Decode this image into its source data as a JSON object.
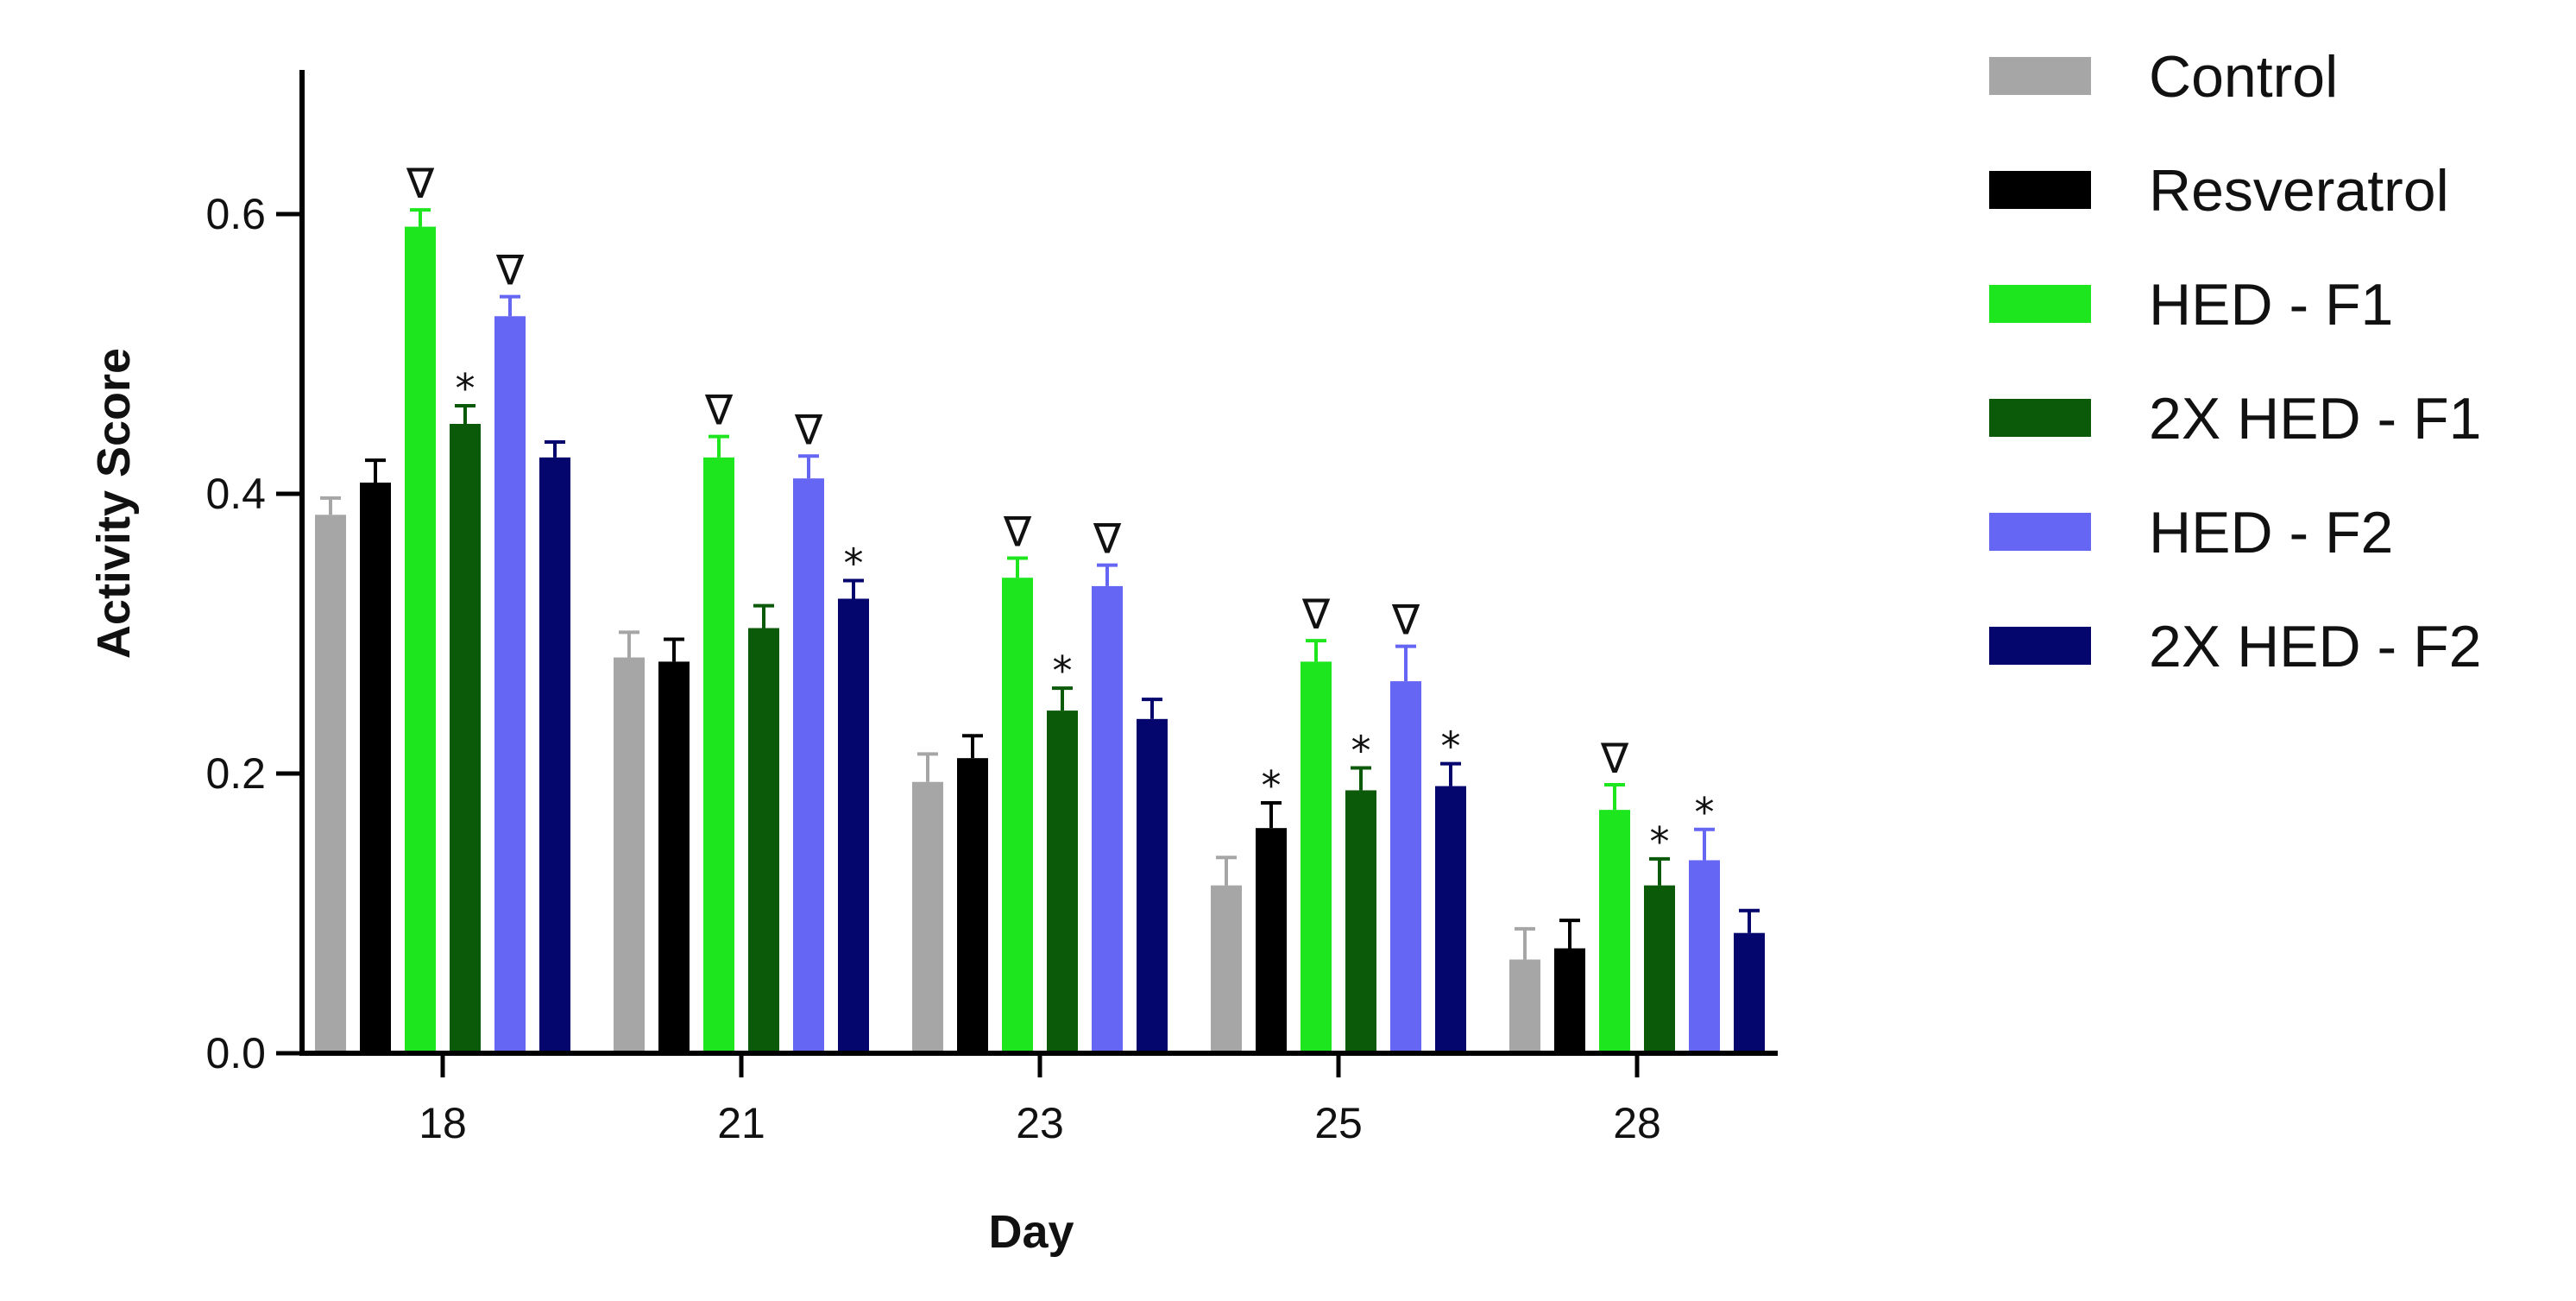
{
  "chart_data": {
    "type": "bar",
    "xlabel": "Day",
    "ylabel": "Activity Score",
    "ylim": [
      0,
      0.7
    ],
    "yticks": [
      0.0,
      0.2,
      0.4,
      0.6
    ],
    "ytick_labels": [
      "0.0",
      "0.2",
      "0.4",
      "0.6"
    ],
    "categories": [
      "18",
      "21",
      "23",
      "25",
      "28"
    ],
    "legend_position": "right",
    "grid": false,
    "series": [
      {
        "name": "Control",
        "color": "#a6a6a6",
        "values": [
          0.385,
          0.283,
          0.194,
          0.12,
          0.067
        ],
        "errors": [
          0.012,
          0.018,
          0.02,
          0.02,
          0.022
        ],
        "markers": [
          "",
          "",
          "",
          "",
          ""
        ]
      },
      {
        "name": "Resveratrol",
        "color": "#000000",
        "values": [
          0.408,
          0.28,
          0.211,
          0.161,
          0.075
        ],
        "errors": [
          0.016,
          0.016,
          0.016,
          0.018,
          0.02
        ],
        "markers": [
          "",
          "",
          "",
          "*",
          ""
        ]
      },
      {
        "name": "HED - F1",
        "color": "#1ee61e",
        "values": [
          0.591,
          0.426,
          0.34,
          0.28,
          0.174
        ],
        "errors": [
          0.012,
          0.015,
          0.014,
          0.015,
          0.018
        ],
        "markers": [
          "∇",
          "∇",
          "∇",
          "∇",
          "∇"
        ]
      },
      {
        "name": "2X HED - F1",
        "color": "#0a5a0a",
        "values": [
          0.45,
          0.304,
          0.245,
          0.188,
          0.12
        ],
        "errors": [
          0.013,
          0.016,
          0.016,
          0.016,
          0.019
        ],
        "markers": [
          "*",
          "",
          "*",
          "*",
          "*"
        ]
      },
      {
        "name": "HED - F2",
        "color": "#6666f5",
        "values": [
          0.527,
          0.411,
          0.334,
          0.266,
          0.138
        ],
        "errors": [
          0.014,
          0.016,
          0.015,
          0.025,
          0.022
        ],
        "markers": [
          "∇",
          "∇",
          "∇",
          "∇",
          "*"
        ]
      },
      {
        "name": "2X HED - F2",
        "color": "#05056e",
        "values": [
          0.426,
          0.325,
          0.239,
          0.191,
          0.086
        ],
        "errors": [
          0.011,
          0.013,
          0.014,
          0.016,
          0.016
        ],
        "markers": [
          "",
          "*",
          "",
          "*",
          ""
        ]
      }
    ]
  }
}
